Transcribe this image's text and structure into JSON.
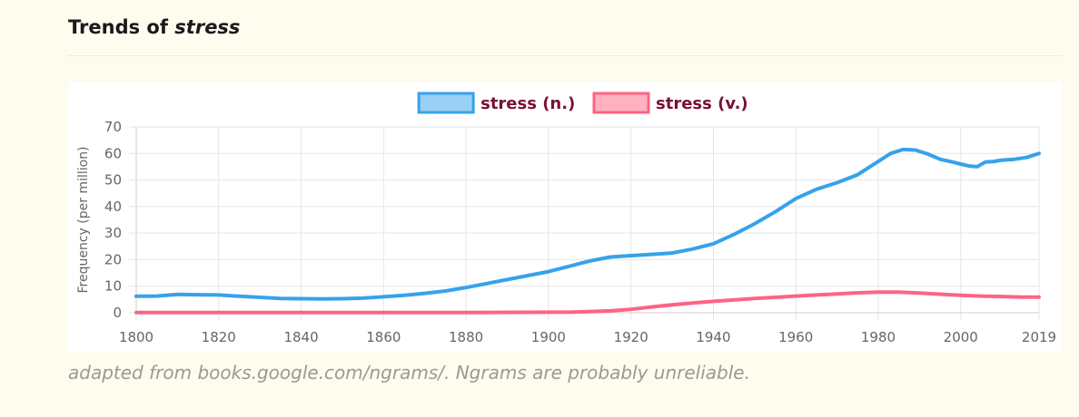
{
  "header": {
    "title_prefix": "Trends of",
    "title_word": "stress"
  },
  "caption": "adapted from books.google.com/ngrams/. Ngrams are probably unreliable.",
  "chart_data": {
    "type": "line",
    "ylabel": "Frequency (per million)",
    "xlabel": "",
    "xlim": [
      1800,
      2019
    ],
    "ylim": [
      0,
      70
    ],
    "x_ticks": [
      1800,
      1820,
      1840,
      1860,
      1880,
      1900,
      1920,
      1940,
      1960,
      1980,
      2000,
      2019
    ],
    "y_ticks": [
      0,
      10,
      20,
      30,
      40,
      50,
      60,
      70
    ],
    "grid": true,
    "legend_position": "top-center",
    "series": [
      {
        "name": "stress (n.)",
        "color": "#36a2eb",
        "fill": "#9ad0f5",
        "points": [
          [
            1800,
            6.2
          ],
          [
            1805,
            6.3
          ],
          [
            1810,
            6.9
          ],
          [
            1815,
            6.8
          ],
          [
            1820,
            6.7
          ],
          [
            1825,
            6.2
          ],
          [
            1830,
            5.8
          ],
          [
            1835,
            5.4
          ],
          [
            1840,
            5.3
          ],
          [
            1845,
            5.2
          ],
          [
            1850,
            5.3
          ],
          [
            1855,
            5.5
          ],
          [
            1860,
            6.0
          ],
          [
            1865,
            6.6
          ],
          [
            1870,
            7.3
          ],
          [
            1875,
            8.2
          ],
          [
            1880,
            9.5
          ],
          [
            1885,
            11.0
          ],
          [
            1890,
            12.5
          ],
          [
            1895,
            14.0
          ],
          [
            1900,
            15.5
          ],
          [
            1905,
            17.5
          ],
          [
            1910,
            19.5
          ],
          [
            1915,
            21.0
          ],
          [
            1920,
            21.5
          ],
          [
            1925,
            22.0
          ],
          [
            1930,
            22.5
          ],
          [
            1935,
            24.0
          ],
          [
            1940,
            26.0
          ],
          [
            1945,
            29.5
          ],
          [
            1950,
            33.5
          ],
          [
            1955,
            38.0
          ],
          [
            1960,
            43.0
          ],
          [
            1965,
            46.5
          ],
          [
            1970,
            49.0
          ],
          [
            1975,
            52.0
          ],
          [
            1980,
            57.0
          ],
          [
            1983,
            60.0
          ],
          [
            1986,
            61.5
          ],
          [
            1989,
            61.3
          ],
          [
            1992,
            59.8
          ],
          [
            1995,
            57.8
          ],
          [
            1998,
            56.8
          ],
          [
            2000,
            56.0
          ],
          [
            2002,
            55.3
          ],
          [
            2004,
            55.0
          ],
          [
            2006,
            56.8
          ],
          [
            2008,
            57.0
          ],
          [
            2010,
            57.5
          ],
          [
            2013,
            57.8
          ],
          [
            2016,
            58.5
          ],
          [
            2019,
            60.0
          ]
        ]
      },
      {
        "name": "stress (v.)",
        "color": "#ff6384",
        "fill": "#ffb1c1",
        "points": [
          [
            1800,
            0.1
          ],
          [
            1850,
            0.1
          ],
          [
            1880,
            0.1
          ],
          [
            1900,
            0.2
          ],
          [
            1905,
            0.2
          ],
          [
            1910,
            0.4
          ],
          [
            1915,
            0.7
          ],
          [
            1920,
            1.3
          ],
          [
            1925,
            2.2
          ],
          [
            1930,
            3.0
          ],
          [
            1935,
            3.7
          ],
          [
            1940,
            4.3
          ],
          [
            1945,
            4.8
          ],
          [
            1950,
            5.4
          ],
          [
            1955,
            5.8
          ],
          [
            1960,
            6.3
          ],
          [
            1965,
            6.7
          ],
          [
            1970,
            7.1
          ],
          [
            1975,
            7.5
          ],
          [
            1980,
            7.8
          ],
          [
            1985,
            7.8
          ],
          [
            1990,
            7.4
          ],
          [
            1995,
            7.0
          ],
          [
            2000,
            6.6
          ],
          [
            2005,
            6.3
          ],
          [
            2010,
            6.1
          ],
          [
            2015,
            5.9
          ],
          [
            2019,
            5.9
          ]
        ]
      }
    ]
  }
}
